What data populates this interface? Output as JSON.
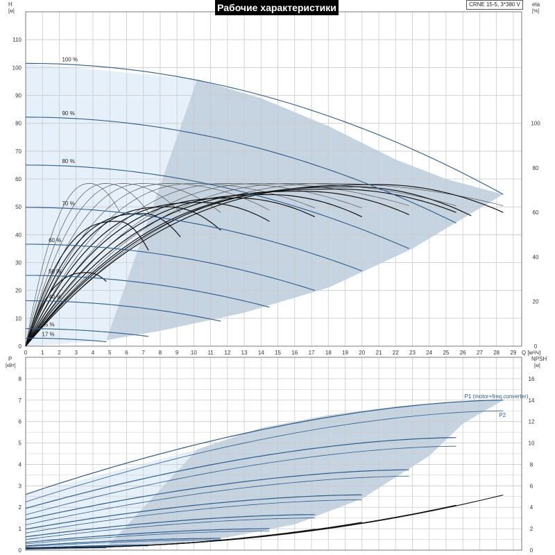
{
  "header": {
    "title": "Рабочие характеристики",
    "model": "CRNE 15-5, 3*380 V"
  },
  "chart_data": [
    {
      "type": "line",
      "panel": "head-efficiency",
      "title": "Рабочие характеристики",
      "x_axis": {
        "label": "Q [м³/ч]",
        "range": [
          0,
          29.5
        ],
        "ticks": [
          0,
          1,
          2,
          3,
          4,
          5,
          6,
          7,
          8,
          9,
          10,
          11,
          12,
          13,
          14,
          15,
          16,
          17,
          18,
          19,
          20,
          21,
          22,
          23,
          24,
          25,
          26,
          27,
          28,
          29
        ]
      },
      "y_left": {
        "label_line1": "H",
        "label_line2": "[м]",
        "range": [
          0,
          120
        ],
        "ticks": [
          0,
          10,
          20,
          30,
          40,
          50,
          60,
          70,
          80,
          90,
          100,
          110
        ]
      },
      "y_right": {
        "label_line1": "eta",
        "label_line2": "[%]",
        "range": [
          0,
          150
        ],
        "ticks": [
          0,
          20,
          40,
          60,
          80,
          100
        ]
      },
      "grid": true,
      "curve_color": "#2b5a8c",
      "eta_color": "#111111",
      "fill_light": "#e6f0fb",
      "fill_dark": "#c6d3e1",
      "head_curves": [
        {
          "name": "100 %",
          "H0": 101.5,
          "Qmax": 28.4,
          "Hend": 54.5
        },
        {
          "name": "90 %",
          "H0": 82.2,
          "Qmax": 25.6,
          "Hend": 44.2
        },
        {
          "name": "80 %",
          "H0": 65.0,
          "Qmax": 22.8,
          "Hend": 35.0
        },
        {
          "name": "70 %",
          "H0": 49.8,
          "Qmax": 20.0,
          "Hend": 27.0
        },
        {
          "name": "60 %",
          "H0": 36.6,
          "Qmax": 17.2,
          "Hend": 20.0
        },
        {
          "name": "50 %",
          "H0": 25.4,
          "Qmax": 14.5,
          "Hend": 14.0
        },
        {
          "name": "40 %",
          "H0": 16.3,
          "Qmax": 11.6,
          "Hend": 9.0
        },
        {
          "name": "25 %",
          "H0": 6.3,
          "Qmax": 7.3,
          "Hend": 3.5
        },
        {
          "name": "17 %",
          "H0": 2.9,
          "Qmax": 4.8,
          "Hend": 1.6
        }
      ],
      "eta_curves": [
        {
          "Qmax": 28.4,
          "peak": 72.5,
          "Qpeak": 21.0,
          "end": 60.0
        },
        {
          "Qmax": 26.5,
          "peak": 71.5,
          "Qpeak": 19.5,
          "end": 58.5
        },
        {
          "Qmax": 25.6,
          "peak": 70.5,
          "Qpeak": 18.5,
          "end": 60.0
        },
        {
          "Qmax": 22.8,
          "peak": 69.5,
          "Qpeak": 16.5,
          "end": 59.0
        },
        {
          "Qmax": 20.0,
          "peak": 68.0,
          "Qpeak": 14.5,
          "end": 58.0
        },
        {
          "Qmax": 17.2,
          "peak": 66.5,
          "Qpeak": 12.5,
          "end": 58.0
        },
        {
          "Qmax": 14.5,
          "peak": 64.5,
          "Qpeak": 10.5,
          "end": 56.0
        },
        {
          "Qmax": 11.6,
          "peak": 62.5,
          "Qpeak": 8.5,
          "end": 52.0
        },
        {
          "Qmax": 9.2,
          "peak": 59.5,
          "Qpeak": 7.0,
          "end": 49.0
        },
        {
          "Qmax": 7.3,
          "peak": 56.0,
          "Qpeak": 5.5,
          "end": 43.0
        },
        {
          "Qmax": 4.8,
          "peak": 33.0,
          "Qpeak": 3.7,
          "end": 29.0
        }
      ],
      "thin_eta_curves": [
        {
          "Qmax": 28.4,
          "peak": 73.0,
          "Qpeak": 18.0,
          "end": 63.0
        },
        {
          "Qmax": 25.6,
          "peak": 73.0,
          "Qpeak": 16.0,
          "end": 63.0
        },
        {
          "Qmax": 22.8,
          "peak": 73.0,
          "Qpeak": 14.0,
          "end": 63.0
        },
        {
          "Qmax": 20.0,
          "peak": 73.0,
          "Qpeak": 12.0,
          "end": 62.0
        },
        {
          "Qmax": 17.2,
          "peak": 73.0,
          "Qpeak": 10.0,
          "end": 62.0
        },
        {
          "Qmax": 14.5,
          "peak": 73.0,
          "Qpeak": 8.5,
          "end": 61.0
        },
        {
          "Qmax": 11.6,
          "peak": 73.0,
          "Qpeak": 7.0,
          "end": 60.0
        },
        {
          "Qmax": 9.2,
          "peak": 73.0,
          "Qpeak": 5.8,
          "end": 60.0
        },
        {
          "Qmax": 7.3,
          "peak": 73.0,
          "Qpeak": 4.8,
          "end": 60.0
        },
        {
          "Qmax": 5.6,
          "peak": 73.0,
          "Qpeak": 3.8,
          "end": 60.0
        }
      ],
      "operating_area": {
        "light": [
          [
            0,
            0
          ],
          [
            0,
            101.5
          ],
          [
            10.2,
            95.8
          ],
          [
            4.8,
            2.2
          ],
          [
            1.5,
            0.5
          ]
        ],
        "dark": [
          [
            1.5,
            0.5
          ],
          [
            4.8,
            2.2
          ],
          [
            10.2,
            95.8
          ],
          [
            14,
            89
          ],
          [
            18,
            79
          ],
          [
            22,
            67
          ],
          [
            25,
            60
          ],
          [
            28.4,
            54.5
          ],
          [
            23,
            35
          ],
          [
            18,
            21
          ],
          [
            13,
            12
          ],
          [
            8,
            5.5
          ],
          [
            4.8,
            2.2
          ]
        ]
      }
    },
    {
      "type": "line",
      "panel": "power-npsh",
      "x_axis": {
        "range": [
          0,
          29.5
        ]
      },
      "y_left": {
        "label_line1": "P",
        "label_line2": "[кВт]",
        "range": [
          0,
          9
        ],
        "ticks": [
          0,
          1,
          2,
          3,
          4,
          5,
          6,
          7,
          8
        ]
      },
      "y_right": {
        "label_line1": "NPSH",
        "label_line2": "[м]",
        "range": [
          0,
          18
        ],
        "ticks": [
          0,
          2,
          4,
          6,
          8,
          10,
          12,
          14,
          16
        ]
      },
      "grid": true,
      "series_labels": {
        "p1": "P1 (motor+freq.converter)",
        "p2": "P2"
      },
      "power_curves": [
        {
          "P1_0": 2.6,
          "P1_end": 7.0,
          "P2_0": 2.25,
          "P2_end": 6.5,
          "Qmax": 28.4
        },
        {
          "P1_0": 1.95,
          "P1_end": 5.25,
          "P2_0": 1.65,
          "P2_end": 4.85,
          "Qmax": 25.6
        },
        {
          "P1_0": 1.42,
          "P1_end": 3.75,
          "P2_0": 1.18,
          "P2_end": 3.45,
          "Qmax": 22.8
        },
        {
          "P1_0": 0.98,
          "P1_end": 2.58,
          "P2_0": 0.8,
          "P2_end": 2.35,
          "Qmax": 20.0
        },
        {
          "P1_0": 0.62,
          "P1_end": 1.66,
          "P2_0": 0.5,
          "P2_end": 1.5,
          "Qmax": 17.2
        },
        {
          "P1_0": 0.36,
          "P1_end": 1.0,
          "P2_0": 0.29,
          "P2_end": 0.9,
          "Qmax": 14.5
        },
        {
          "P1_0": 0.2,
          "P1_end": 0.55,
          "P2_0": 0.16,
          "P2_end": 0.48,
          "Qmax": 11.6
        },
        {
          "P1_0": 0.09,
          "P1_end": 0.24,
          "P2_0": 0.07,
          "P2_end": 0.2,
          "Qmax": 7.3
        },
        {
          "P1_0": 0.05,
          "P1_end": 0.12,
          "P2_0": 0.04,
          "P2_end": 0.1,
          "Qmax": 4.8
        }
      ],
      "npsh_curves": [
        {
          "Qmax": 28.4,
          "end": 5.15
        },
        {
          "Qmax": 25.6,
          "end": 4.2
        },
        {
          "Qmax": 22.8,
          "end": 3.3
        },
        {
          "Qmax": 20.0,
          "end": 2.6
        },
        {
          "Qmax": 17.2,
          "end": 1.95
        },
        {
          "Qmax": 14.5,
          "end": 1.4
        }
      ],
      "operating_area": {
        "light": [
          [
            0,
            0
          ],
          [
            0,
            2.6
          ],
          [
            10.2,
            4.7
          ],
          [
            4.8,
            0.12
          ],
          [
            1.5,
            0.04
          ]
        ],
        "dark": [
          [
            1.5,
            0.04
          ],
          [
            4.8,
            0.12
          ],
          [
            10.2,
            4.7
          ],
          [
            14,
            5.7
          ],
          [
            18,
            6.3
          ],
          [
            22,
            6.7
          ],
          [
            25,
            6.9
          ],
          [
            28.4,
            7.0
          ],
          [
            26,
            5.9
          ],
          [
            24,
            4.4
          ],
          [
            20,
            2.4
          ],
          [
            16,
            1.2
          ],
          [
            12,
            0.6
          ],
          [
            8,
            0.25
          ],
          [
            4.8,
            0.12
          ]
        ]
      }
    }
  ]
}
